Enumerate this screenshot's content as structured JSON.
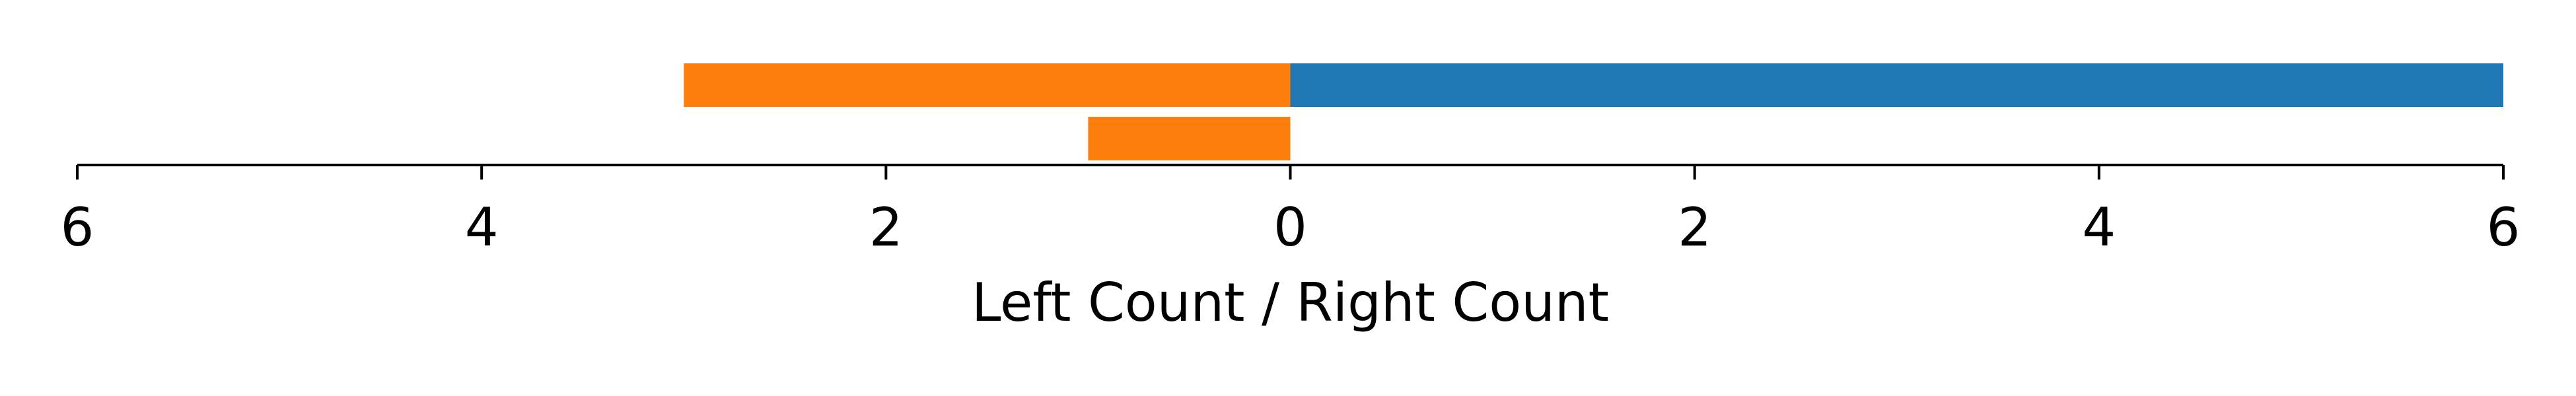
{
  "chart_data": {
    "type": "bar",
    "orientation": "horizontal",
    "layout": "diverging",
    "xlabel": "Left Count / Right Count",
    "x_ticks": [
      {
        "value": -6,
        "label": "6"
      },
      {
        "value": -4,
        "label": "4"
      },
      {
        "value": -2,
        "label": "2"
      },
      {
        "value": 0,
        "label": "0"
      },
      {
        "value": 2,
        "label": "2"
      },
      {
        "value": 4,
        "label": "4"
      },
      {
        "value": 6,
        "label": "6"
      }
    ],
    "xlim": [
      -6,
      6
    ],
    "grid": false,
    "rows": [
      {
        "bars": [
          {
            "side": "left",
            "value": 3,
            "color": "#ff7f0e"
          },
          {
            "side": "right",
            "value": 6,
            "color": "#1f77b4"
          }
        ]
      },
      {
        "bars": [
          {
            "side": "left",
            "value": 1,
            "color": "#ff7f0e"
          }
        ]
      }
    ],
    "colors": {
      "orange": "#ff7f0e",
      "blue": "#1f77b4",
      "axis": "#000000"
    }
  }
}
